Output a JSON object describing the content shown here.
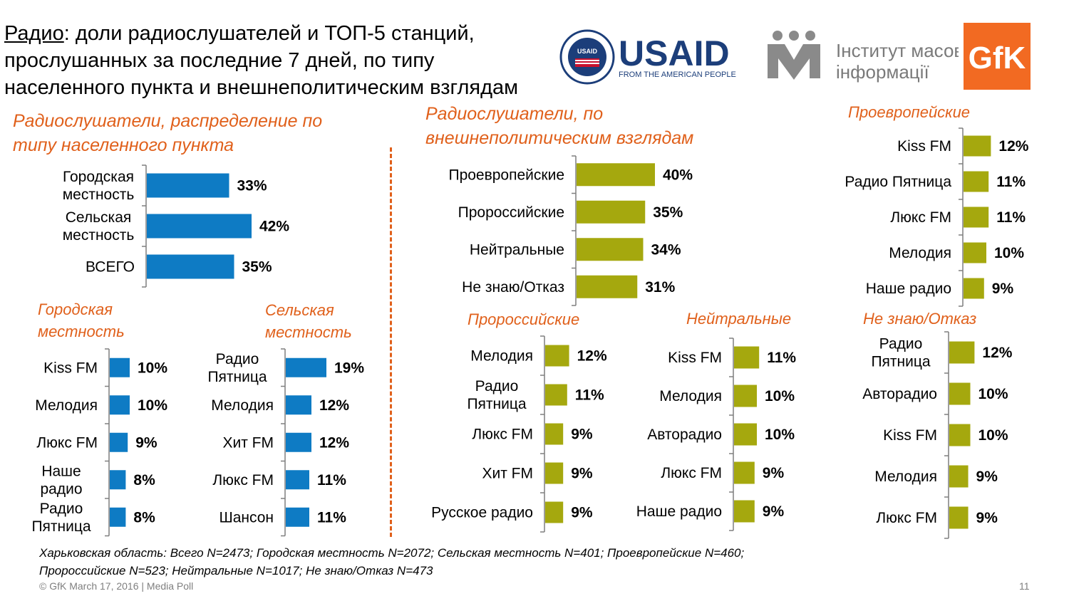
{
  "header": {
    "title_lead": "Радио",
    "title_rest_line1": ": доли радиослушателей и ТОП-5 станций,",
    "title_line2": "прослушанных за последние 7 дней, по типу",
    "title_line3": "населенного пункта и внешнеполитическим взглядам"
  },
  "logos": {
    "usaid_wordmark": "USAID",
    "usaid_tagline": "FROM THE AMERICAN PEOPLE",
    "usaid_seal_top": "USAID",
    "imi_line1": "Інститут масової",
    "imi_line2": "інформації",
    "gfk": "GfK"
  },
  "sections": {
    "left_title_line1": "Радиослушатели, распределение по",
    "left_title_line2": "типу населенного пункта",
    "mid_title_line1": "Радиослушатели, по",
    "mid_title_line2": "внешнеполитическим взглядам"
  },
  "subtitles": {
    "urban_line1": "Городская",
    "urban_line2": "местность",
    "rural_line1": "Сельская",
    "rural_line2": "местность",
    "proeuro": "Проевропейские",
    "prorus": "Пророссийские",
    "neutral": "Нейтральные",
    "dunno": "Не знаю/Отказ"
  },
  "colors": {
    "blue": "#0e7bc4",
    "olive": "#a5a80e",
    "accent": "#e0601b",
    "axis": "#7f7f7f"
  },
  "chart_data": [
    {
      "id": "settlement",
      "type": "bar",
      "orientation": "horizontal",
      "unit": "%",
      "categories": [
        "Городская\nместность",
        "Сельская\nместность",
        "ВСЕГО"
      ],
      "values": [
        33,
        42,
        35
      ],
      "labels": [
        "33%",
        "42%",
        "35%"
      ],
      "color": "blue",
      "xlim": [
        0,
        100
      ]
    },
    {
      "id": "foreign_policy",
      "type": "bar",
      "orientation": "horizontal",
      "unit": "%",
      "categories": [
        "Проевропейские",
        "Пророссийские",
        "Нейтральные",
        "Не знаю/Отказ"
      ],
      "values": [
        40,
        35,
        34,
        31
      ],
      "labels": [
        "40%",
        "35%",
        "34%",
        "31%"
      ],
      "color": "olive",
      "xlim": [
        0,
        100
      ]
    },
    {
      "id": "urban_top5",
      "type": "bar",
      "orientation": "horizontal",
      "unit": "%",
      "categories": [
        "Kiss FM",
        "Мелодия",
        "Люкс FM",
        "Наше\nрадио",
        "Радио\nПятница"
      ],
      "values": [
        10,
        10,
        9,
        8,
        8
      ],
      "labels": [
        "10%",
        "10%",
        "9%",
        "8%",
        "8%"
      ],
      "color": "blue",
      "xlim": [
        0,
        40
      ]
    },
    {
      "id": "rural_top5",
      "type": "bar",
      "orientation": "horizontal",
      "unit": "%",
      "categories": [
        "Радио\nПятница",
        "Мелодия",
        "Хит FM",
        "Люкс FM",
        "Шансон"
      ],
      "values": [
        19,
        12,
        12,
        11,
        11
      ],
      "labels": [
        "19%",
        "12%",
        "12%",
        "11%",
        "11%"
      ],
      "color": "blue",
      "xlim": [
        0,
        40
      ]
    },
    {
      "id": "proeuro_top5",
      "type": "bar",
      "orientation": "horizontal",
      "unit": "%",
      "categories": [
        "Kiss FM",
        "Радио Пятница",
        "Люкс FM",
        "Мелодия",
        "Наше радио"
      ],
      "values": [
        12,
        11,
        11,
        10,
        9
      ],
      "labels": [
        "12%",
        "11%",
        "11%",
        "10%",
        "9%"
      ],
      "color": "olive",
      "xlim": [
        0,
        40
      ]
    },
    {
      "id": "prorus_top5",
      "type": "bar",
      "orientation": "horizontal",
      "unit": "%",
      "categories": [
        "Мелодия",
        "Радио\nПятница",
        "Люкс FM",
        "Хит FM",
        "Русское радио"
      ],
      "values": [
        12,
        11,
        9,
        9,
        9
      ],
      "labels": [
        "12%",
        "11%",
        "9%",
        "9%",
        "9%"
      ],
      "color": "olive",
      "xlim": [
        0,
        40
      ]
    },
    {
      "id": "neutral_top5",
      "type": "bar",
      "orientation": "horizontal",
      "unit": "%",
      "categories": [
        "Kiss FM",
        "Мелодия",
        "Авторадио",
        "Люкс FM",
        "Наше радио"
      ],
      "values": [
        11,
        10,
        10,
        9,
        9
      ],
      "labels": [
        "11%",
        "10%",
        "10%",
        "9%",
        "9%"
      ],
      "color": "olive",
      "xlim": [
        0,
        40
      ]
    },
    {
      "id": "dunno_top5",
      "type": "bar",
      "orientation": "horizontal",
      "unit": "%",
      "categories": [
        "Радио\nПятница",
        "Авторадио",
        "Kiss FM",
        "Мелодия",
        "Люкс FM"
      ],
      "values": [
        12,
        10,
        10,
        9,
        9
      ],
      "labels": [
        "12%",
        "10%",
        "10%",
        "9%",
        "9%"
      ],
      "color": "olive",
      "xlim": [
        0,
        40
      ]
    }
  ],
  "footnote": {
    "line1": "Харьковская область: Всего N=2473; Городская местность N=2072; Сельская местность N=401; Проевропейские N=460;",
    "line2": "Пророссийские N=523; Нейтральные N=1017; Не знаю/Отказ N=473"
  },
  "footer": {
    "copyright": "© GfK March 17, 2016 | Media Poll",
    "page": "11"
  }
}
